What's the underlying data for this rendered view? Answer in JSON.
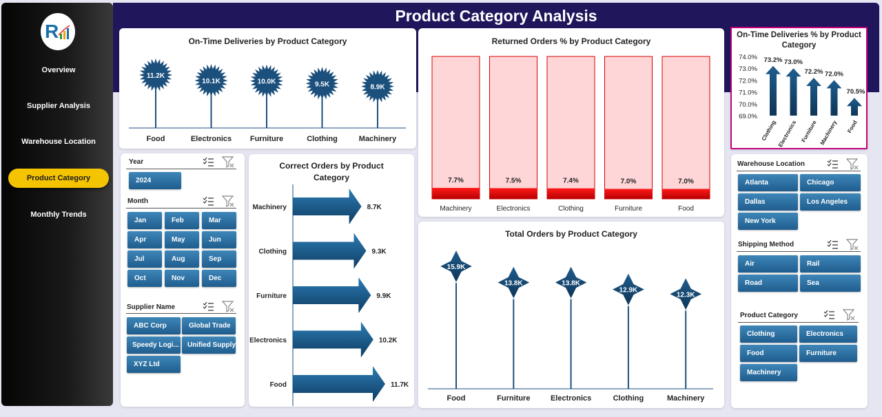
{
  "title": "Product Category Analysis",
  "colors": {
    "header": "#20165c",
    "accent": "#f5c400",
    "bar_dark": "#1b4f7c",
    "returned_fill": "#ffd6d8",
    "returned_bar": "#e60000"
  },
  "sidebar": {
    "items": [
      {
        "label": "Overview",
        "active": false
      },
      {
        "label": "Supplier Analysis",
        "active": false
      },
      {
        "label": "Warehouse Location",
        "active": false
      },
      {
        "label": "Product Category",
        "active": true
      },
      {
        "label": "Monthly Trends",
        "active": false
      }
    ]
  },
  "slicers": {
    "year": {
      "title": "Year",
      "items": [
        "2024"
      ]
    },
    "month": {
      "title": "Month",
      "items": [
        "Jan",
        "Feb",
        "Mar",
        "Apr",
        "May",
        "Jun",
        "Jul",
        "Aug",
        "Sep",
        "Oct",
        "Nov",
        "Dec"
      ]
    },
    "supplier": {
      "title": "Supplier Name",
      "items": [
        "ABC Corp",
        "Global Trade",
        "Speedy Logi...",
        "Unified Supply",
        "XYZ Ltd"
      ]
    },
    "warehouse": {
      "title": "Warehouse Location",
      "items": [
        "Atlanta",
        "Chicago",
        "Dallas",
        "Los Angeles",
        "New York"
      ]
    },
    "shipping": {
      "title": "Shipping Method",
      "items": [
        "Air",
        "Rail",
        "Road",
        "Sea"
      ]
    },
    "category": {
      "title": "Product Category",
      "items": [
        "Clothing",
        "Electronics",
        "Food",
        "Furniture",
        "Machinery"
      ]
    }
  },
  "chart_data": [
    {
      "id": "ontime",
      "type": "bar",
      "title": "On-Time Deliveries by Product Category",
      "categories": [
        "Food",
        "Electronics",
        "Furniture",
        "Clothing",
        "Machinery"
      ],
      "values": [
        11200,
        10100,
        10000,
        9500,
        8900
      ],
      "labels": [
        "11.2K",
        "10.1K",
        "10.0K",
        "9.5K",
        "8.9K"
      ]
    },
    {
      "id": "returned",
      "type": "bar",
      "title": "Returned Orders % by Product Category",
      "categories": [
        "Machinery",
        "Electronics",
        "Clothing",
        "Furniture",
        "Food"
      ],
      "values": [
        7.7,
        7.5,
        7.4,
        7.0,
        7.0
      ],
      "labels": [
        "7.7%",
        "7.5%",
        "7.4%",
        "7.0%",
        "7.0%"
      ],
      "ylim": [
        0,
        100
      ]
    },
    {
      "id": "ontime_pct",
      "type": "bar",
      "title": "On-Time Deliveries % by Product Category",
      "categories": [
        "Clothing",
        "Electronics",
        "Furniture",
        "Machinery",
        "Food"
      ],
      "values": [
        73.2,
        73.0,
        72.2,
        72.0,
        70.5
      ],
      "labels": [
        "73.2%",
        "73.0%",
        "72.2%",
        "72.0%",
        "70.5%"
      ],
      "yticks": [
        "74.0%",
        "73.0%",
        "72.0%",
        "71.0%",
        "70.0%",
        "69.0%"
      ],
      "ylim": [
        69,
        74
      ]
    },
    {
      "id": "correct",
      "type": "bar",
      "title": "Correct Orders by Product Category",
      "categories": [
        "Machinery",
        "Clothing",
        "Furniture",
        "Electronics",
        "Food"
      ],
      "values": [
        8700,
        9300,
        9900,
        10200,
        11700
      ],
      "labels": [
        "8.7K",
        "9.3K",
        "9.9K",
        "10.2K",
        "11.7K"
      ]
    },
    {
      "id": "total",
      "type": "bar",
      "title": "Total Orders by Product Category",
      "categories": [
        "Food",
        "Furniture",
        "Electronics",
        "Clothing",
        "Machinery"
      ],
      "values": [
        15900,
        13800,
        13800,
        12900,
        12300
      ],
      "labels": [
        "15.9K",
        "13.8K",
        "13.8K",
        "12.9K",
        "12.3K"
      ]
    }
  ]
}
